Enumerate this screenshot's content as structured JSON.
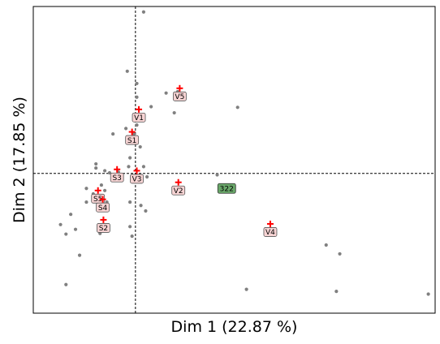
{
  "chart_data": {
    "type": "scatter",
    "xlabel": "Dim 1 (22.87 %)",
    "ylabel": "Dim 2 (17.85 %)",
    "xlim": [
      -1.5,
      4.4
    ],
    "ylim": [
      -2.05,
      2.45
    ],
    "grid": false,
    "reference_lines": {
      "x": 0,
      "y": 0
    },
    "colors": {
      "point": "#808080",
      "cross": "#ff0000",
      "label_fill": "#f7d4d4",
      "highlight_fill": "#6aa86a",
      "line": "#000000"
    },
    "points": [
      {
        "x": 0.12,
        "y": 2.37
      },
      {
        "x": -0.12,
        "y": 1.5
      },
      {
        "x": 0.02,
        "y": 1.32
      },
      {
        "x": 0.02,
        "y": 1.12
      },
      {
        "x": 0.45,
        "y": 1.18
      },
      {
        "x": 0.62,
        "y": 1.2
      },
      {
        "x": 0.57,
        "y": 0.89
      },
      {
        "x": 1.5,
        "y": 0.97
      },
      {
        "x": 0.23,
        "y": 0.98
      },
      {
        "x": -0.14,
        "y": 0.66
      },
      {
        "x": 0.02,
        "y": 0.71
      },
      {
        "x": -0.02,
        "y": 0.58
      },
      {
        "x": -0.33,
        "y": 0.58
      },
      {
        "x": 0.07,
        "y": 0.39
      },
      {
        "x": -0.08,
        "y": 0.23
      },
      {
        "x": -0.58,
        "y": 0.14
      },
      {
        "x": -0.58,
        "y": 0.08
      },
      {
        "x": -0.1,
        "y": 0.1
      },
      {
        "x": 0.12,
        "y": 0.1
      },
      {
        "x": -0.25,
        "y": 0.02
      },
      {
        "x": -0.38,
        "y": 0.01
      },
      {
        "x": -0.45,
        "y": 0.04
      },
      {
        "x": 0.17,
        "y": -0.05
      },
      {
        "x": 1.2,
        "y": -0.02
      },
      {
        "x": 1.25,
        "y": -0.17
      },
      {
        "x": 1.32,
        "y": -0.25
      },
      {
        "x": -0.5,
        "y": -0.17
      },
      {
        "x": -0.72,
        "y": -0.22
      },
      {
        "x": -0.62,
        "y": -0.3
      },
      {
        "x": -0.45,
        "y": -0.25
      },
      {
        "x": -0.42,
        "y": -0.42
      },
      {
        "x": -0.72,
        "y": -0.42
      },
      {
        "x": -0.55,
        "y": -0.52
      },
      {
        "x": -0.08,
        "y": -0.42
      },
      {
        "x": 0.08,
        "y": -0.47
      },
      {
        "x": 0.15,
        "y": -0.55
      },
      {
        "x": -0.95,
        "y": -0.6
      },
      {
        "x": -1.1,
        "y": -0.75
      },
      {
        "x": -0.88,
        "y": -0.82
      },
      {
        "x": -1.02,
        "y": -0.89
      },
      {
        "x": -0.52,
        "y": -0.88
      },
      {
        "x": -0.82,
        "y": -1.2
      },
      {
        "x": -0.08,
        "y": -0.78
      },
      {
        "x": -0.05,
        "y": -0.92
      },
      {
        "x": 2.8,
        "y": -1.05
      },
      {
        "x": 3.0,
        "y": -1.18
      },
      {
        "x": -1.02,
        "y": -1.63
      },
      {
        "x": 1.63,
        "y": -1.7
      },
      {
        "x": 2.95,
        "y": -1.73
      },
      {
        "x": 4.3,
        "y": -1.77
      }
    ],
    "variables": [
      {
        "label": "V5",
        "x": 0.65,
        "y": 1.25
      },
      {
        "label": "V1",
        "x": 0.05,
        "y": 0.94
      },
      {
        "label": "S1",
        "x": -0.05,
        "y": 0.61
      },
      {
        "label": "S3",
        "x": -0.27,
        "y": 0.06
      },
      {
        "label": "V3",
        "x": 0.02,
        "y": 0.04
      },
      {
        "label": "V2",
        "x": 0.63,
        "y": -0.13
      },
      {
        "label": "S5",
        "x": -0.55,
        "y": -0.25
      },
      {
        "label": "S4",
        "x": -0.48,
        "y": -0.38
      },
      {
        "label": "S2",
        "x": -0.47,
        "y": -0.68
      },
      {
        "label": "V4",
        "x": 1.98,
        "y": -0.74
      }
    ],
    "highlighted": [
      {
        "label": "322",
        "x": 1.34,
        "y": -0.22
      }
    ]
  }
}
